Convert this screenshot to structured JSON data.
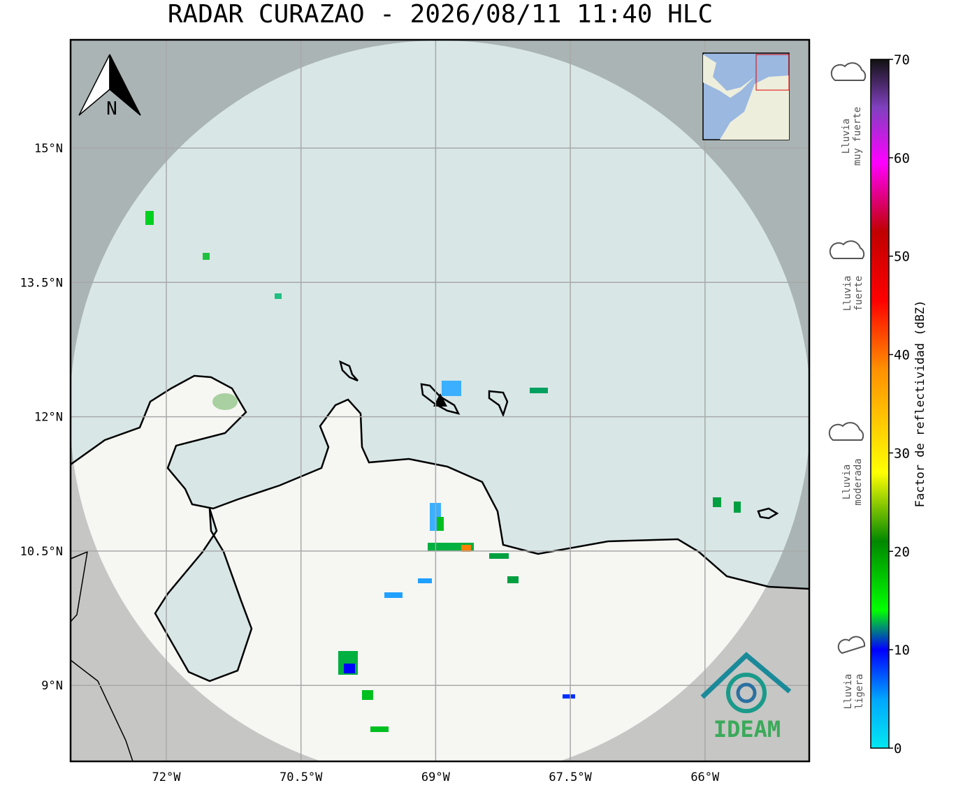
{
  "title": "RADAR CURAZAO - 2026/08/11 11:40 HLC",
  "north_label": "N",
  "latitude_labels": [
    "15°N",
    "13.5°N",
    "12°N",
    "10.5°N",
    "9°N"
  ],
  "longitude_labels": [
    "72°W",
    "70.5°W",
    "69°W",
    "67.5°W",
    "66°W"
  ],
  "logo_text": "IDEAM",
  "colorbar": {
    "label": "Factor de reflectividad (dBZ)",
    "ticks": [
      0,
      10,
      20,
      30,
      40,
      50,
      60,
      70
    ]
  },
  "rain_levels": [
    [
      "Lluvia",
      "muy fuerte"
    ],
    [
      "Lluvia",
      "fuerte"
    ],
    [
      "Lluvia",
      "moderada"
    ],
    [
      "Lluvia",
      "ligera"
    ]
  ]
}
